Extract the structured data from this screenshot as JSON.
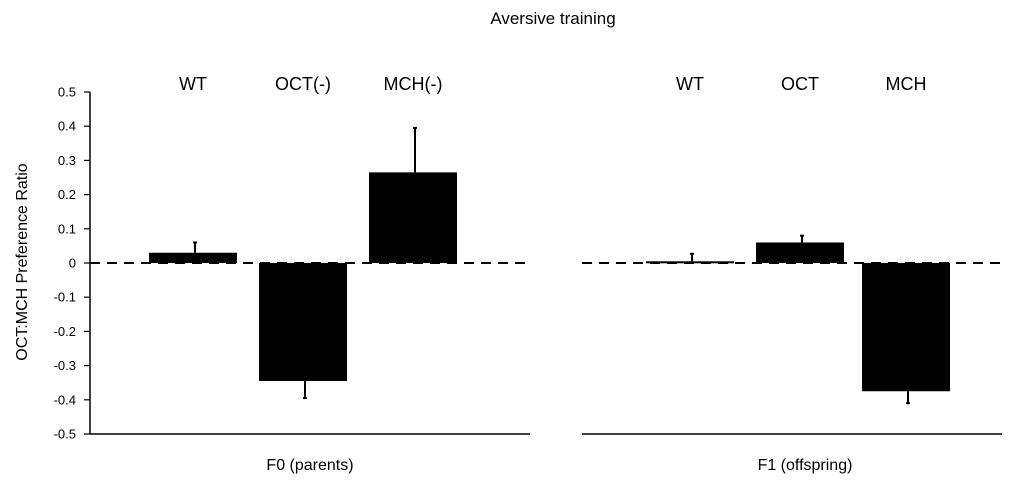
{
  "chart_data": {
    "type": "bar",
    "title": "Aversive training",
    "ylabel": "OCT:MCH Preference Ratio",
    "ylim": [
      -0.5,
      0.5
    ],
    "yticks": [
      "0.5",
      "0.4",
      "0.3",
      "0.2",
      "0.1",
      "0",
      "-0.1",
      "-0.2",
      "-0.3",
      "-0.4",
      "-0.5"
    ],
    "bar_color": "#000000",
    "panels": [
      {
        "label": "F0 (parents)",
        "categories": [
          "WT",
          "OCT(-)",
          "MCH(-)"
        ],
        "values": [
          0.03,
          -0.345,
          0.265
        ],
        "errors": [
          0.03,
          0.05,
          0.13
        ]
      },
      {
        "label": "F1 (offspring)",
        "categories": [
          "WT",
          "OCT",
          "MCH"
        ],
        "values": [
          0.005,
          0.06,
          -0.375
        ],
        "errors": [
          0.022,
          0.02,
          0.035
        ]
      }
    ]
  }
}
